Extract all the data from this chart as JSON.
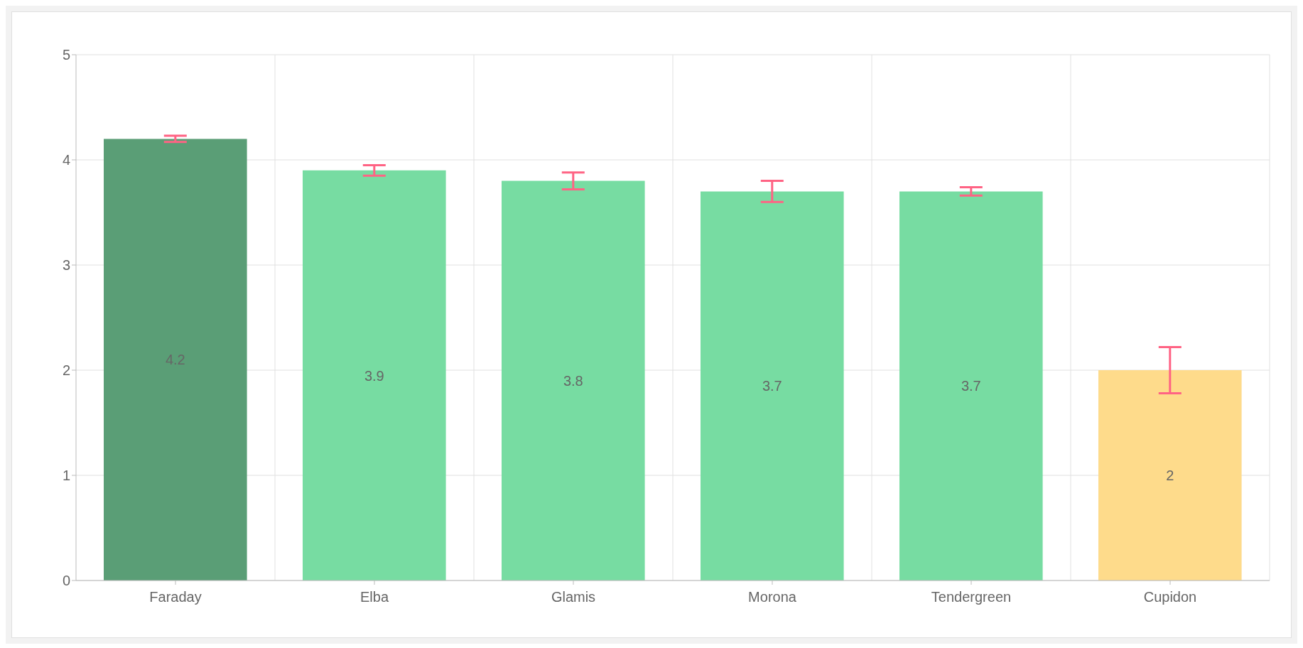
{
  "chart_data": {
    "type": "bar",
    "categories": [
      "Faraday",
      "Elba",
      "Glamis",
      "Morona",
      "Tendergreen",
      "Cupidon"
    ],
    "values": [
      4.2,
      3.9,
      3.8,
      3.7,
      3.7,
      2
    ],
    "colors": [
      "#5a9e76",
      "#77dca2",
      "#77dca2",
      "#77dca2",
      "#77dca2",
      "#fedb8b"
    ],
    "errors": [
      0.03,
      0.05,
      0.08,
      0.1,
      0.04,
      0.22
    ],
    "ylim": [
      0,
      5
    ],
    "yticks": [
      0,
      1,
      2,
      3,
      4,
      5
    ],
    "grid": true,
    "data_labels": true
  }
}
